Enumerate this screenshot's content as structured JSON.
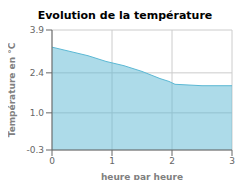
{
  "chart_data": {
    "type": "area",
    "title": "Evolution de la température",
    "xlabel": "heure par heure",
    "ylabel": "Température en °C",
    "x": [
      0,
      0.3,
      0.6,
      0.9,
      1.2,
      1.5,
      1.8,
      1.95,
      2.05,
      2.5,
      3.0
    ],
    "values": [
      3.3,
      3.15,
      3.0,
      2.8,
      2.65,
      2.45,
      2.2,
      2.1,
      2.0,
      1.95,
      1.95
    ],
    "color": "#5bb8d4",
    "xlim": [
      0,
      3
    ],
    "ylim": [
      -0.3,
      3.9
    ],
    "xticks": [
      0,
      1,
      2,
      3
    ],
    "yticks": [
      -0.3,
      {
        "value": 1,
        "label": "1.0"
      },
      2.4,
      3.9
    ],
    "grid": true
  }
}
